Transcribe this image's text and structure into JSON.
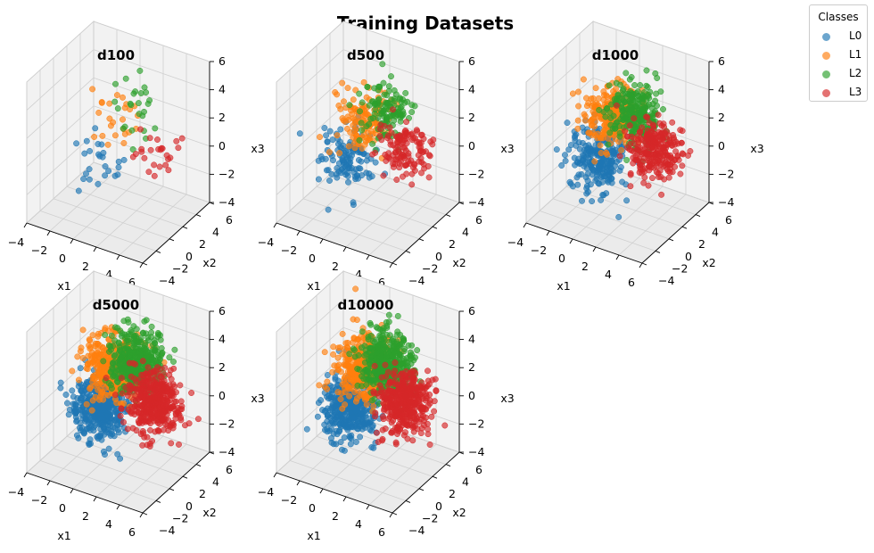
{
  "title": "Training Datasets",
  "legend": {
    "title": "Classes",
    "entries": [
      {
        "label": "L0",
        "color": "#1f77b4"
      },
      {
        "label": "L1",
        "color": "#ff7f0e"
      },
      {
        "label": "L2",
        "color": "#2ca02c"
      },
      {
        "label": "L3",
        "color": "#d62728"
      }
    ]
  },
  "chart_data": [
    {
      "type": "scatter",
      "subtype": "3d",
      "title": "d100",
      "xlabel": "x1",
      "ylabel": "x2",
      "zlabel": "x3",
      "xlim": [
        -4,
        6
      ],
      "ylim": [
        -4,
        6
      ],
      "zlim": [
        -4,
        6
      ],
      "xticks": [
        "−4",
        "−2",
        "0",
        "2",
        "4",
        "6"
      ],
      "yticks": [
        "−4",
        "−2",
        "0",
        "2",
        "4",
        "6"
      ],
      "zticks": [
        "−4",
        "−2",
        "0",
        "2",
        "4",
        "6"
      ],
      "grid": true,
      "n_points": 100,
      "series": [
        {
          "name": "L0",
          "center": [
            0,
            0,
            0
          ],
          "spread": 1
        },
        {
          "name": "L1",
          "center": [
            0,
            2,
            2
          ],
          "spread": 1
        },
        {
          "name": "L2",
          "center": [
            2,
            2,
            3
          ],
          "spread": 1
        },
        {
          "name": "L3",
          "center": [
            3,
            3,
            0
          ],
          "spread": 1
        }
      ]
    },
    {
      "type": "scatter",
      "subtype": "3d",
      "title": "d500",
      "xlabel": "x1",
      "ylabel": "x2",
      "zlabel": "x3",
      "xlim": [
        -4,
        6
      ],
      "ylim": [
        -4,
        6
      ],
      "zlim": [
        -4,
        6
      ],
      "xticks": [
        "−4",
        "−2",
        "0",
        "2",
        "4",
        "6"
      ],
      "yticks": [
        "−4",
        "−2",
        "0",
        "2",
        "4",
        "6"
      ],
      "zticks": [
        "−4",
        "−2",
        "0",
        "2",
        "4",
        "6"
      ],
      "grid": true,
      "n_points": 500,
      "series": [
        {
          "name": "L0",
          "center": [
            0,
            0,
            0
          ],
          "spread": 1
        },
        {
          "name": "L1",
          "center": [
            0,
            2,
            2
          ],
          "spread": 1
        },
        {
          "name": "L2",
          "center": [
            2,
            2,
            3
          ],
          "spread": 1
        },
        {
          "name": "L3",
          "center": [
            3,
            3,
            0
          ],
          "spread": 1
        }
      ]
    },
    {
      "type": "scatter",
      "subtype": "3d",
      "title": "d1000",
      "xlabel": "x1",
      "ylabel": "x2",
      "zlabel": "x3",
      "xlim": [
        -4,
        6
      ],
      "ylim": [
        -4,
        6
      ],
      "zlim": [
        -4,
        6
      ],
      "xticks": [
        "−4",
        "−2",
        "0",
        "2",
        "4",
        "6"
      ],
      "yticks": [
        "−4",
        "−2",
        "0",
        "2",
        "4",
        "6"
      ],
      "zticks": [
        "−4",
        "−2",
        "0",
        "2",
        "4",
        "6"
      ],
      "grid": true,
      "n_points": 1000,
      "series": [
        {
          "name": "L0",
          "center": [
            0,
            0,
            0
          ],
          "spread": 1
        },
        {
          "name": "L1",
          "center": [
            0,
            2,
            2
          ],
          "spread": 1
        },
        {
          "name": "L2",
          "center": [
            2,
            2,
            3
          ],
          "spread": 1
        },
        {
          "name": "L3",
          "center": [
            3,
            3,
            0
          ],
          "spread": 1
        }
      ]
    },
    {
      "type": "scatter",
      "subtype": "3d",
      "title": "d5000",
      "xlabel": "x1",
      "ylabel": "x2",
      "zlabel": "x3",
      "xlim": [
        -4,
        6
      ],
      "ylim": [
        -4,
        6
      ],
      "zlim": [
        -4,
        6
      ],
      "xticks": [
        "−4",
        "−2",
        "0",
        "2",
        "4",
        "6"
      ],
      "yticks": [
        "−4",
        "−2",
        "0",
        "2",
        "4",
        "6"
      ],
      "zticks": [
        "−4",
        "−2",
        "0",
        "2",
        "4",
        "6"
      ],
      "grid": true,
      "n_points": 5000,
      "series": [
        {
          "name": "L0",
          "center": [
            0,
            0,
            0
          ],
          "spread": 1
        },
        {
          "name": "L1",
          "center": [
            0,
            2,
            2
          ],
          "spread": 1
        },
        {
          "name": "L2",
          "center": [
            2,
            2,
            3
          ],
          "spread": 1
        },
        {
          "name": "L3",
          "center": [
            3,
            3,
            0
          ],
          "spread": 1
        }
      ]
    },
    {
      "type": "scatter",
      "subtype": "3d",
      "title": "d10000",
      "xlabel": "x1",
      "ylabel": "x2",
      "zlabel": "x3",
      "xlim": [
        -4,
        6
      ],
      "ylim": [
        -4,
        6
      ],
      "zlim": [
        -4,
        6
      ],
      "xticks": [
        "−4",
        "−2",
        "0",
        "2",
        "4",
        "6"
      ],
      "yticks": [
        "−4",
        "−2",
        "0",
        "2",
        "4",
        "6"
      ],
      "zticks": [
        "−4",
        "−2",
        "0",
        "2",
        "4",
        "6"
      ],
      "grid": true,
      "n_points": 10000,
      "series": [
        {
          "name": "L0",
          "center": [
            0,
            0,
            0
          ],
          "spread": 1
        },
        {
          "name": "L1",
          "center": [
            0,
            2,
            2
          ],
          "spread": 1
        },
        {
          "name": "L2",
          "center": [
            2,
            2,
            3
          ],
          "spread": 1
        },
        {
          "name": "L3",
          "center": [
            3,
            3,
            0
          ],
          "spread": 1
        }
      ]
    }
  ]
}
